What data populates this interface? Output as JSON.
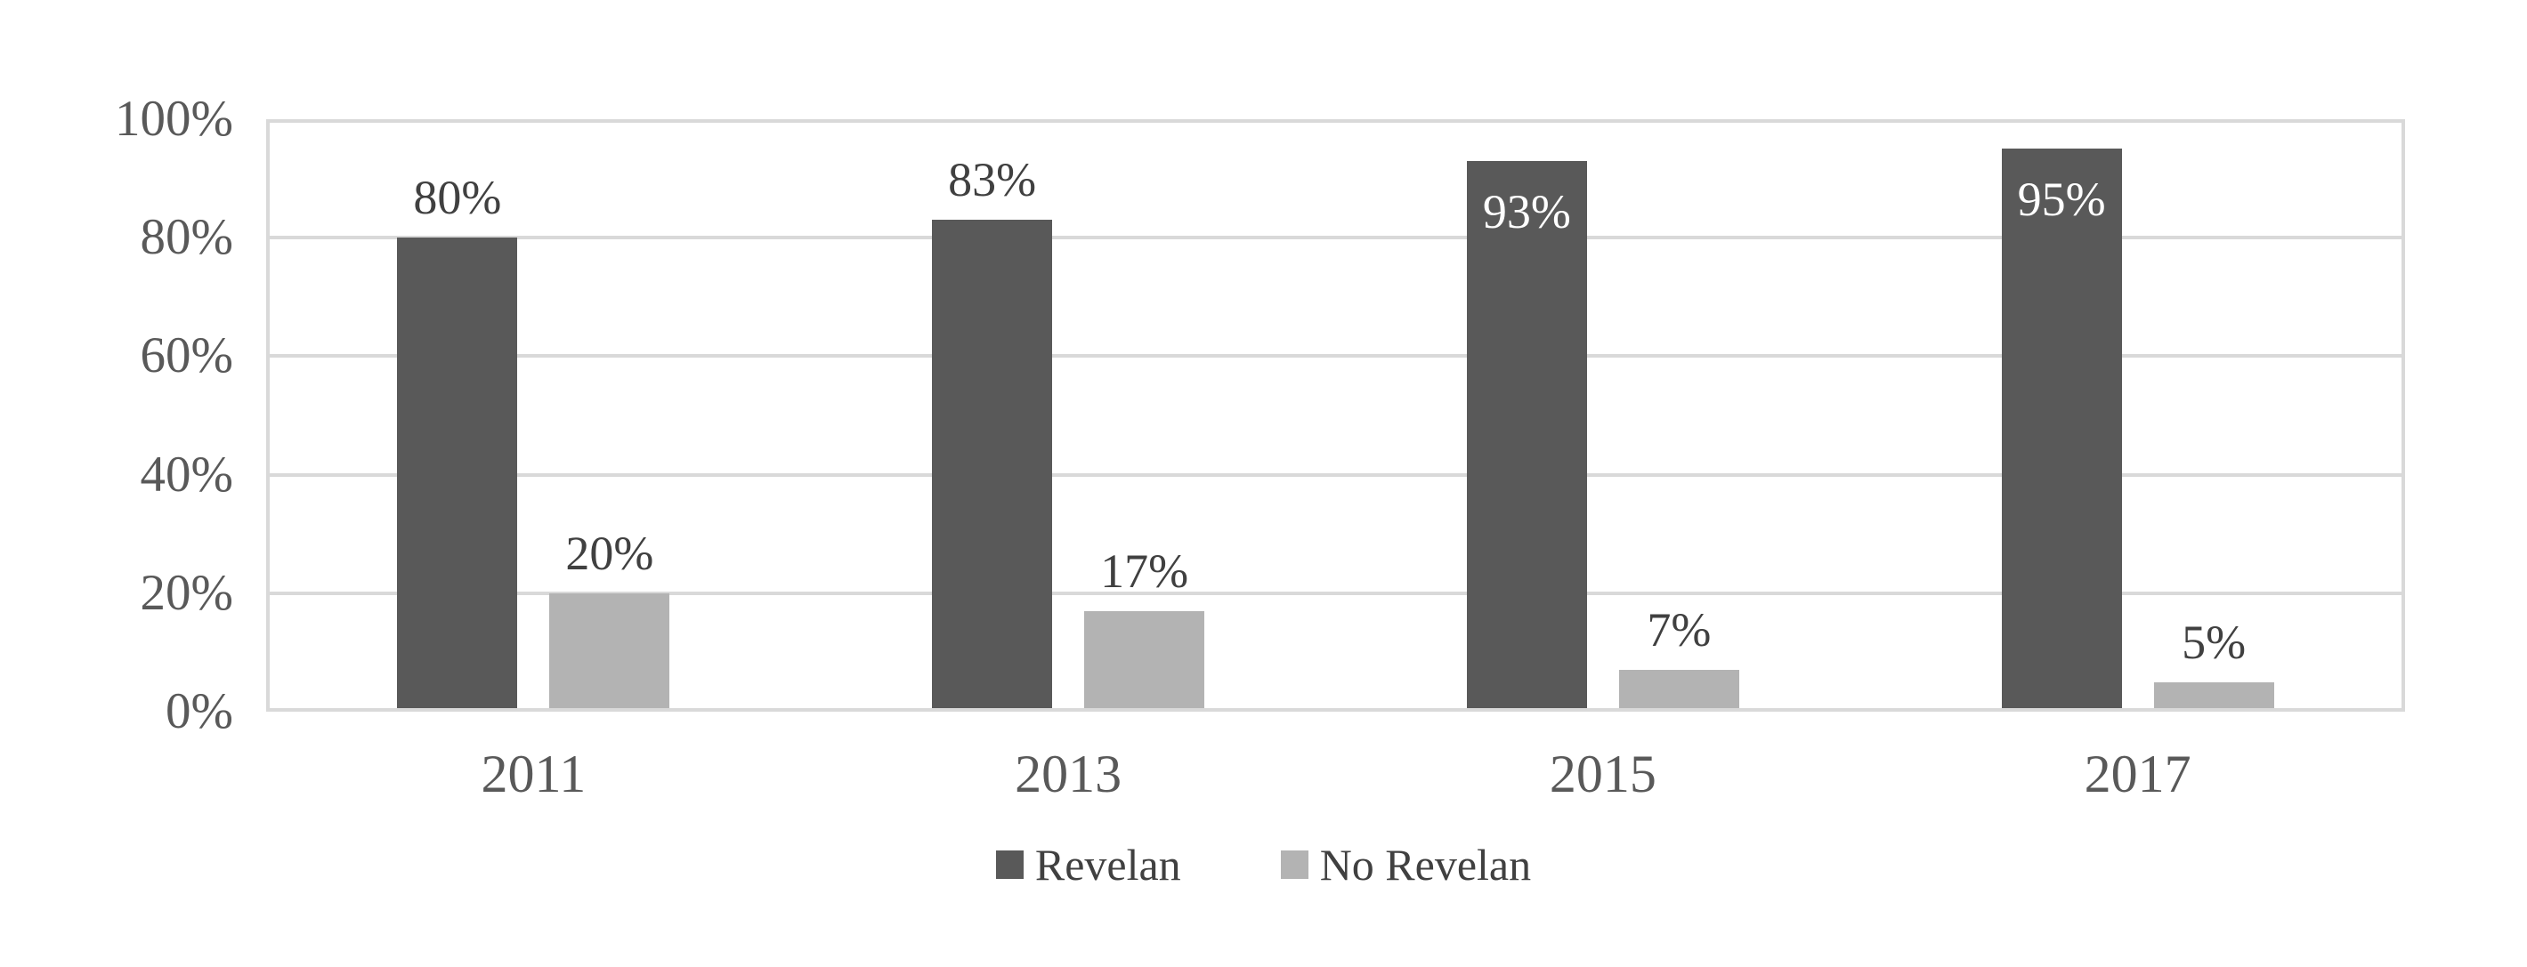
{
  "chart_data": {
    "type": "bar",
    "categories": [
      "2011",
      "2013",
      "2015",
      "2017"
    ],
    "series": [
      {
        "name": "Revelan",
        "color": "#595959",
        "values": [
          80,
          83,
          93,
          95
        ],
        "labels": [
          "80%",
          "83%",
          "93%",
          "95%"
        ],
        "label_inside": [
          false,
          false,
          true,
          true
        ]
      },
      {
        "name": "No Revelan",
        "color": "#b3b3b3",
        "values": [
          20,
          17,
          7,
          5
        ],
        "labels": [
          "20%",
          "17%",
          "7%",
          "5%"
        ],
        "label_inside": [
          false,
          false,
          false,
          false
        ]
      }
    ],
    "yticks": [
      {
        "value": 0,
        "label": "0%"
      },
      {
        "value": 20,
        "label": "20%"
      },
      {
        "value": 40,
        "label": "40%"
      },
      {
        "value": 60,
        "label": "60%"
      },
      {
        "value": 80,
        "label": "80%"
      },
      {
        "value": 100,
        "label": "100%"
      }
    ],
    "ylim": [
      0,
      100
    ],
    "title": "",
    "xlabel": "",
    "ylabel": "",
    "grid": "horizontal",
    "legend_position": "bottom-center"
  },
  "colors": {
    "background": "#ffffff",
    "gridline": "#d9d9d9",
    "plot_border": "#d9d9d9",
    "axis_text": "#595959",
    "data_label_outside": "#404040",
    "data_label_inside": "#ffffff",
    "legend_text": "#404040"
  }
}
